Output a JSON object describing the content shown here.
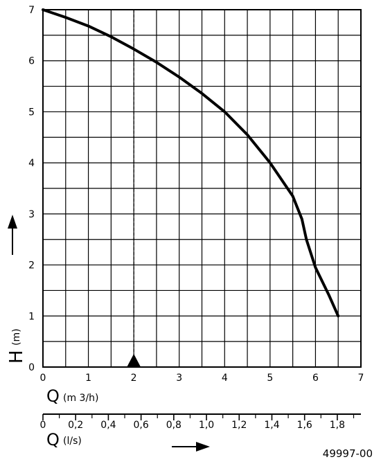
{
  "chart_data": {
    "type": "line",
    "title": "",
    "series": [
      {
        "name": "",
        "x": [
          0,
          0.5,
          1,
          1.5,
          2,
          2.5,
          3,
          3.5,
          4,
          4.5,
          5,
          5.5,
          5.7,
          5.8,
          6,
          6.3,
          6.5
        ],
        "y": [
          7,
          6.85,
          6.68,
          6.47,
          6.23,
          5.97,
          5.68,
          5.36,
          5.0,
          4.55,
          4.0,
          3.35,
          2.9,
          2.5,
          1.95,
          1.4,
          1.0
        ]
      }
    ],
    "xlim": [
      0,
      7
    ],
    "ylim": [
      0,
      7
    ],
    "grid": true,
    "x_ticks": [
      "0",
      "1",
      "2",
      "3",
      "4",
      "5",
      "6",
      "7"
    ],
    "y_ticks": [
      "0",
      "1",
      "2",
      "3",
      "4",
      "5",
      "6",
      "7"
    ],
    "xlabel": "Q",
    "xlabel_unit": "(m 3/h)",
    "ylabel": "H",
    "ylabel_unit": "(m)",
    "duty_point_q": 2,
    "secondary_axis": {
      "label": "Q",
      "unit": "(l/s)",
      "ticks": [
        "0",
        "0,2",
        "0,4",
        "0,6",
        "0,8",
        "1,0",
        "1,2",
        "1,4",
        "1,6",
        "1,8"
      ]
    },
    "reference": "49997-00"
  }
}
